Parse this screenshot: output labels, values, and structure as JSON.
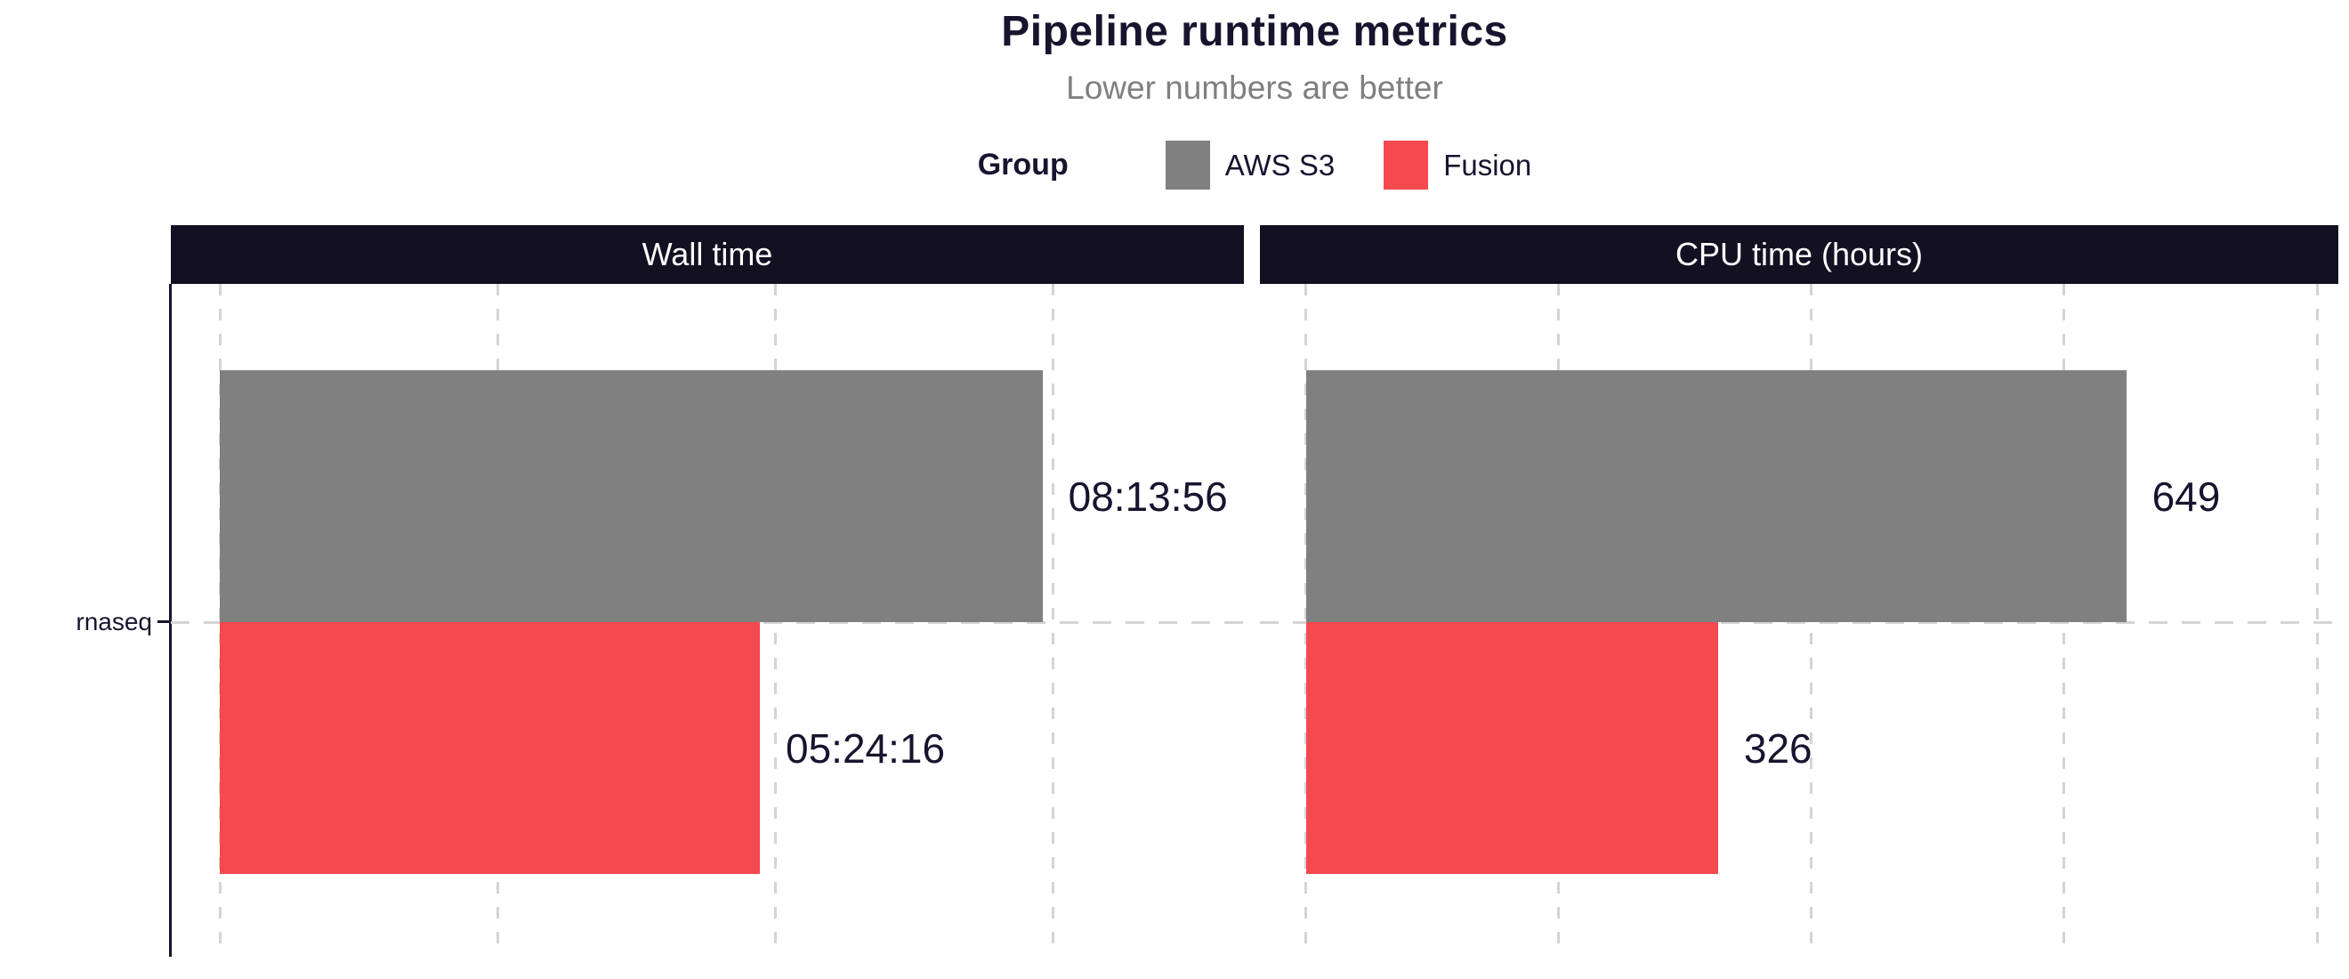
{
  "chart_data": {
    "type": "bar",
    "orientation": "horizontal",
    "faceted": true,
    "title": "Pipeline runtime metrics",
    "subtitle": "Lower numbers are better",
    "categories": [
      "rnaseq"
    ],
    "legend": {
      "title": "Group",
      "position": "top",
      "entries": [
        {
          "label": "AWS S3",
          "color": "#808080"
        },
        {
          "label": "Fusion",
          "color": "#F44A4F"
        }
      ]
    },
    "grid": "vertical dashed major lines, dashed horizontal line at category center, no axis tick labels",
    "facets": [
      {
        "label": "Wall time",
        "unit": "seconds (hh:mm:ss labels)",
        "xlim": [
          -1763,
          36891
        ],
        "grid_values": [
          0,
          10000,
          20000,
          30000
        ],
        "series": [
          {
            "group": "AWS S3",
            "category": "rnaseq",
            "value": 29636,
            "value_label": "08:13:56"
          },
          {
            "group": "Fusion",
            "category": "rnaseq",
            "value": 19456,
            "value_label": "05:24:16"
          }
        ]
      },
      {
        "label": "CPU time (hours)",
        "unit": "hours",
        "xlim": [
          -36.6,
          816.9
        ],
        "grid_values": [
          0,
          200,
          400,
          600,
          800
        ],
        "series": [
          {
            "group": "AWS S3",
            "category": "rnaseq",
            "value": 649,
            "value_label": "649"
          },
          {
            "group": "Fusion",
            "category": "rnaseq",
            "value": 326,
            "value_label": "326"
          }
        ]
      }
    ],
    "colors": {
      "strip": "#131022",
      "text_dark": "#17142E",
      "subtitle": "#7F7F7F",
      "grid": "#D4D4D4",
      "axis": "#17142E",
      "background": "#FFFFFF"
    }
  }
}
